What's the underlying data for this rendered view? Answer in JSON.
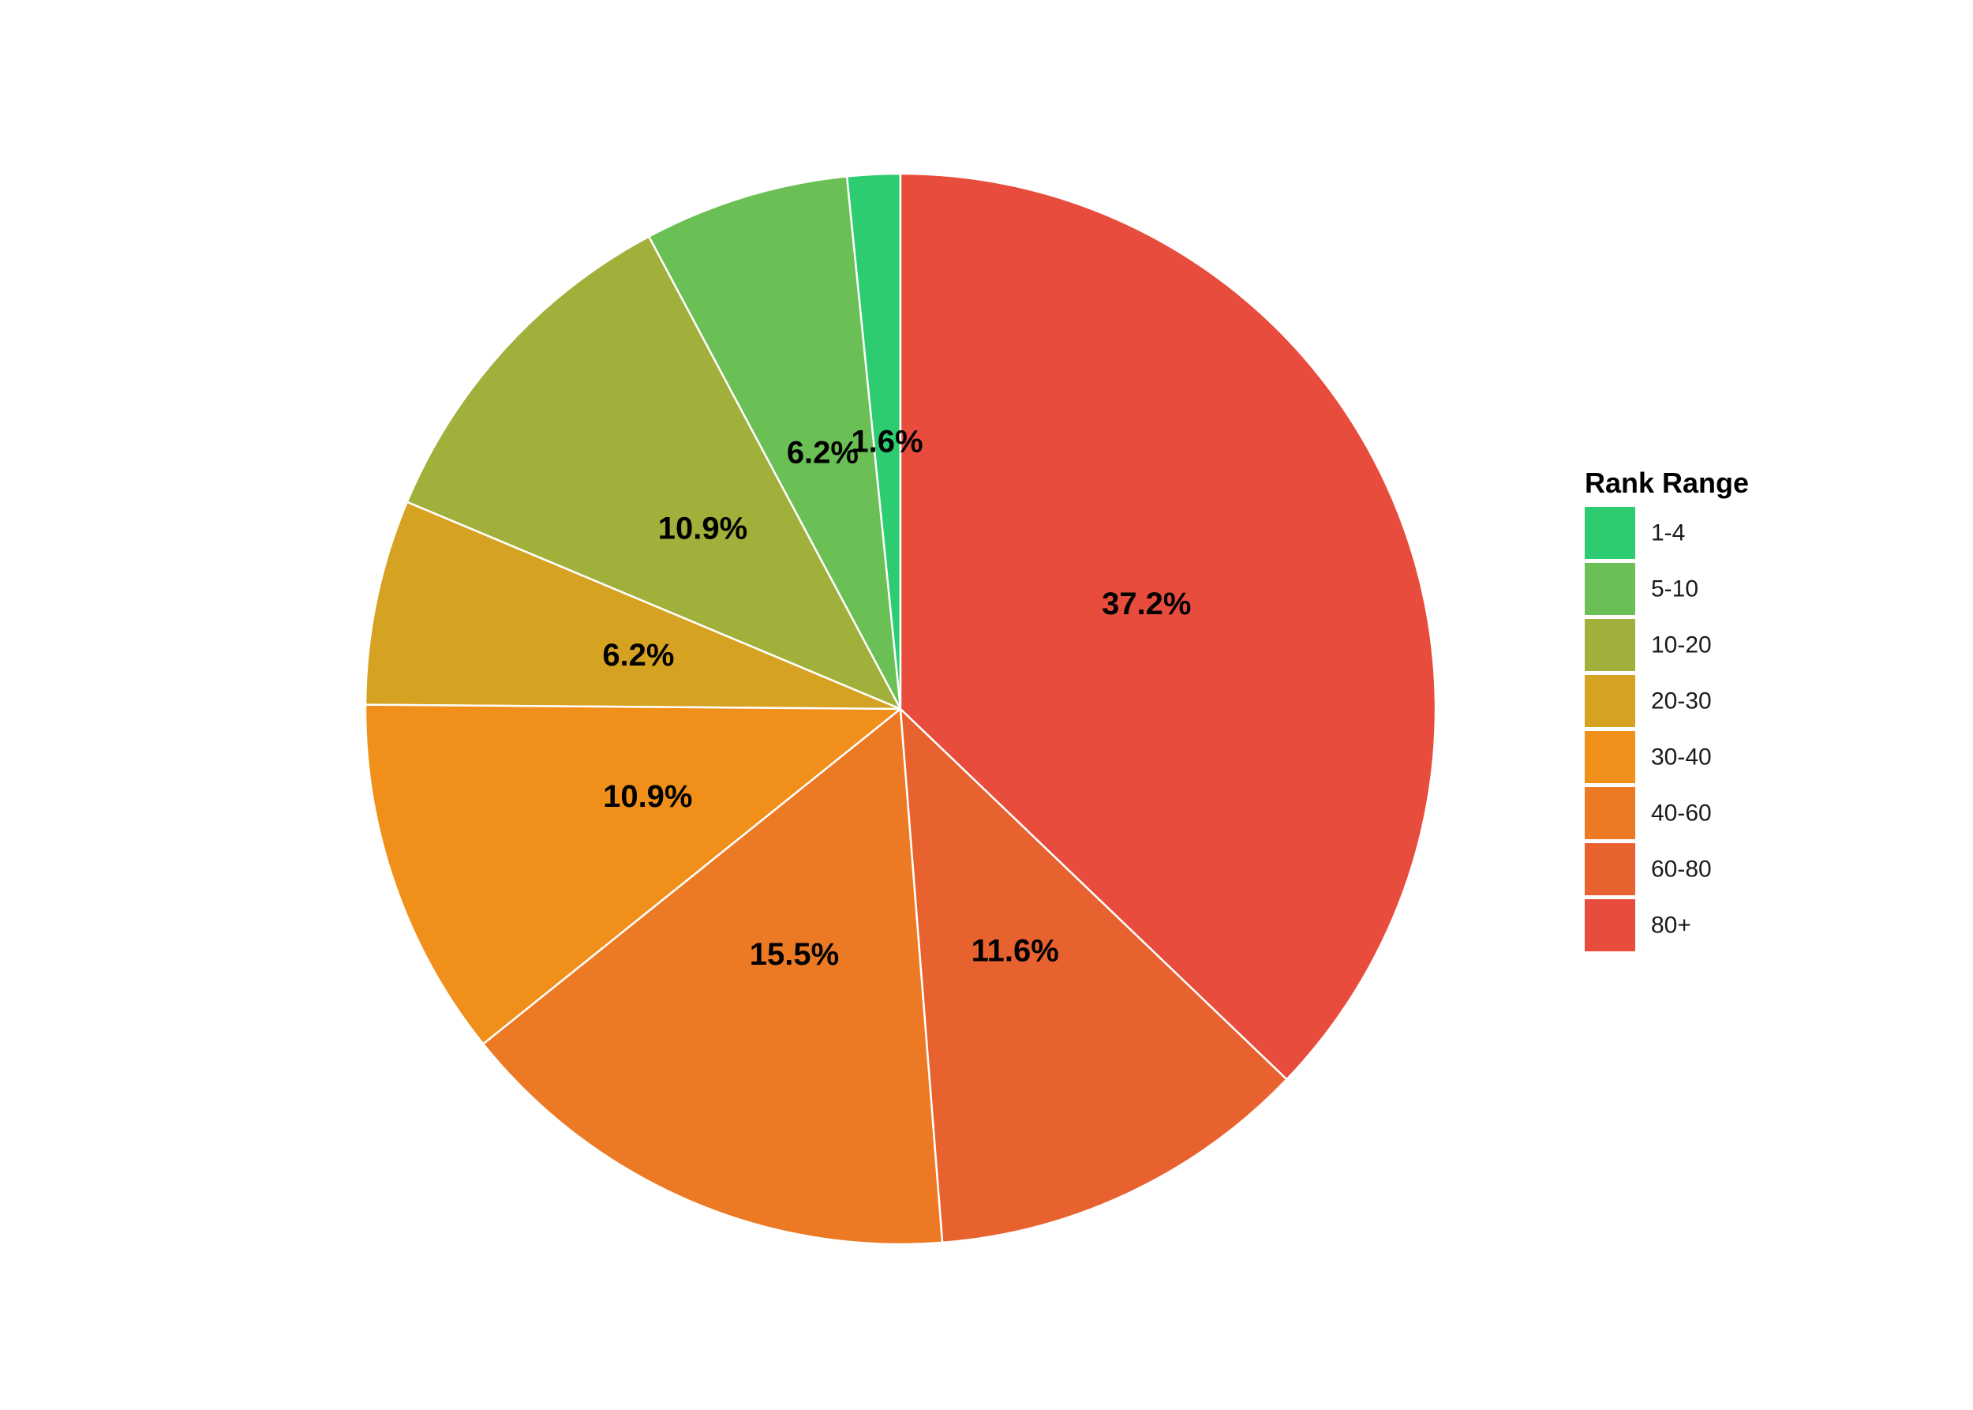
{
  "chart_data": {
    "type": "pie",
    "legend_title": "Rank Range",
    "legend_position": "right",
    "start_angle": "12 o'clock",
    "direction": "counter-clockwise",
    "slices": [
      {
        "label": "1-4",
        "value": 1.6,
        "display": "1.6%",
        "color": "#2ECC71"
      },
      {
        "label": "5-10",
        "value": 6.2,
        "display": "6.2%",
        "color": "#6ABF55"
      },
      {
        "label": "10-20",
        "value": 10.9,
        "display": "10.9%",
        "color": "#A1B03B"
      },
      {
        "label": "20-30",
        "value": 6.2,
        "display": "6.2%",
        "color": "#D6A222"
      },
      {
        "label": "30-40",
        "value": 10.9,
        "display": "10.9%",
        "color": "#F0901A"
      },
      {
        "label": "40-60",
        "value": 15.5,
        "display": "15.5%",
        "color": "#EC7A25"
      },
      {
        "label": "60-80",
        "value": 11.6,
        "display": "11.6%",
        "color": "#E86230"
      },
      {
        "label": "80+",
        "value": 37.2,
        "display": "37.2%",
        "color": "#E74C3C"
      }
    ]
  }
}
